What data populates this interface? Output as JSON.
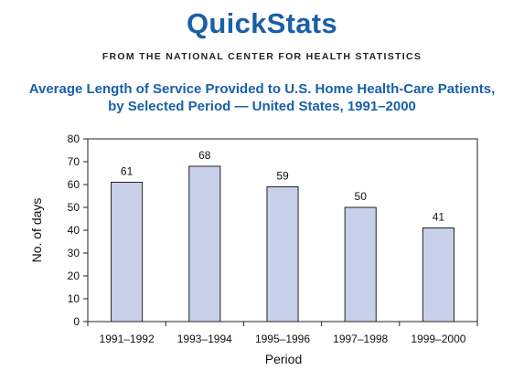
{
  "header": {
    "brand": "QuickStats",
    "source": "FROM THE NATIONAL CENTER FOR HEALTH STATISTICS"
  },
  "chart_data": {
    "type": "bar",
    "title_line1": "Average Length of Service Provided to U.S. Home Health-Care Patients,",
    "title_line2": "by Selected Period — United States, 1991–2000",
    "categories": [
      "1991–1992",
      "1993–1994",
      "1995–1996",
      "1997–1998",
      "1999–2000"
    ],
    "values": [
      61,
      68,
      59,
      50,
      41
    ],
    "xlabel": "Period",
    "ylabel": "No. of days",
    "ylim": [
      0,
      80
    ],
    "yticks": [
      0,
      10,
      20,
      30,
      40,
      50,
      60,
      70,
      80
    ],
    "grid": false,
    "legend": "none",
    "bar_color": "#c9d0ea",
    "bar_edge_color": "#222222"
  }
}
